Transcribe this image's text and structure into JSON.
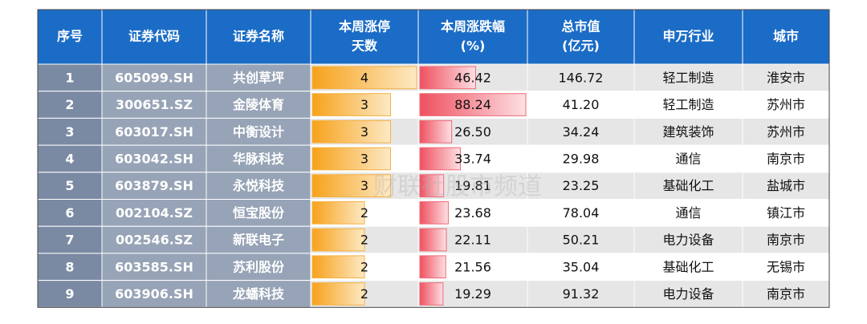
{
  "table": {
    "headers": [
      [
        "序号"
      ],
      [
        "证券代码"
      ],
      [
        "证券名称"
      ],
      [
        "本周涨停",
        "天数"
      ],
      [
        "本周涨跌幅",
        "(%)"
      ],
      [
        "总市值",
        "(亿元)"
      ],
      [
        "申万行业"
      ],
      [
        "城市"
      ]
    ],
    "rows": [
      [
        1,
        "605099.SH",
        "共创草坪",
        4,
        46.42,
        146.72,
        "轻工制造",
        "淮安市"
      ],
      [
        2,
        "300651.SZ",
        "金陵体育",
        3,
        88.24,
        {
          "value": 41.2,
          "label": "41.20"
        },
        "轻工制造",
        "苏州市"
      ],
      [
        3,
        "603017.SH",
        "中衡设计",
        3,
        {
          "value": 26.5,
          "label": "26.50"
        },
        34.24,
        "建筑装饰",
        "苏州市"
      ],
      [
        4,
        "603042.SH",
        "华脉科技",
        3,
        33.74,
        29.98,
        "通信",
        "南京市"
      ],
      [
        5,
        "603879.SH",
        "永悦科技",
        3,
        19.81,
        23.25,
        "基础化工",
        "盐城市"
      ],
      [
        6,
        "002104.SZ",
        "恒宝股份",
        2,
        23.68,
        78.04,
        "通信",
        "镇江市"
      ],
      [
        7,
        "002546.SZ",
        "新联电子",
        2,
        22.11,
        50.21,
        "电力设备",
        "南京市"
      ],
      [
        8,
        "603585.SH",
        "苏利股份",
        2,
        21.56,
        35.04,
        "基础化工",
        "无锡市"
      ],
      [
        9,
        "603906.SH",
        "龙蟠科技",
        2,
        19.29,
        91.32,
        "电力设备",
        "南京市"
      ]
    ]
  },
  "watermark": "财联社股市频道"
}
